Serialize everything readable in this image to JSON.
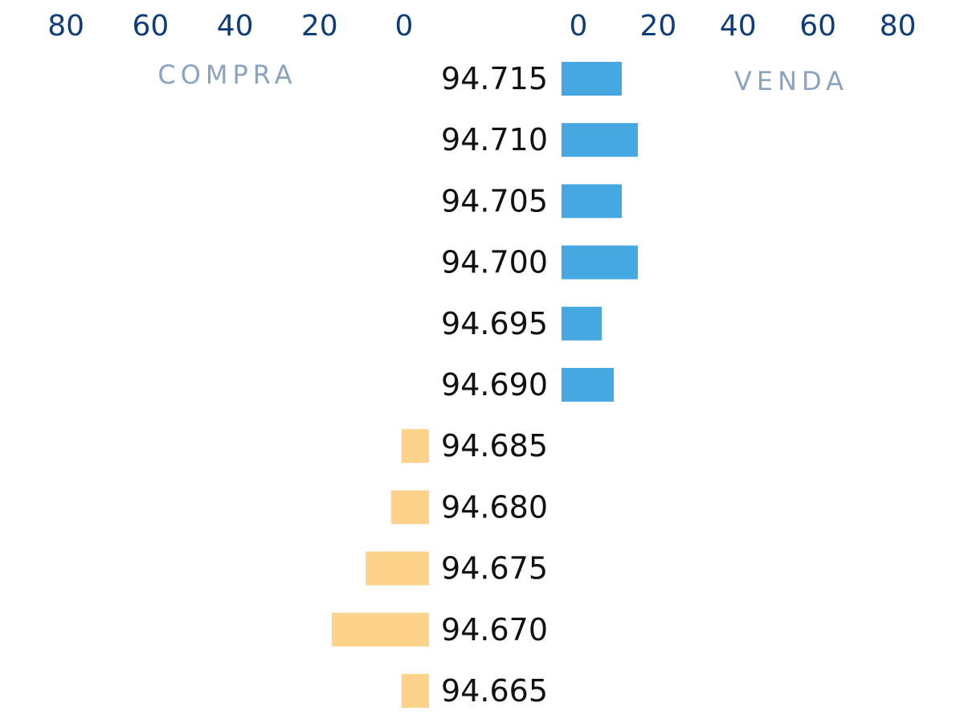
{
  "chart_data": {
    "type": "bar",
    "orientation": "horizontal",
    "categories": [
      "94.715",
      "94.710",
      "94.705",
      "94.700",
      "94.695",
      "94.690",
      "94.685",
      "94.680",
      "94.675",
      "94.670",
      "94.665"
    ],
    "series": [
      {
        "name": "COMPRA",
        "color": "#fdd28a",
        "values": [
          0,
          0,
          0,
          0,
          0,
          0,
          6.5,
          9,
          15,
          23,
          6.5
        ],
        "axis_ticks": [
          80,
          60,
          40,
          20,
          0
        ],
        "direction": "left"
      },
      {
        "name": "VENDA",
        "color": "#46a8e0",
        "values": [
          15,
          19,
          15,
          19,
          10,
          13,
          0,
          0,
          0,
          0,
          0
        ],
        "axis_ticks": [
          0,
          20,
          40,
          60,
          80
        ],
        "direction": "right"
      }
    ],
    "xlim": [
      0,
      80
    ],
    "grid": false,
    "legend": "none"
  }
}
